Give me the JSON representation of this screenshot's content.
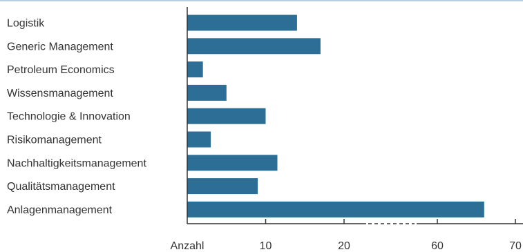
{
  "chart_data": {
    "type": "bar",
    "orientation": "horizontal",
    "categories": [
      "Logistik",
      "Generic Management",
      "Petroleum Economics",
      "Wissensmanagement",
      "Technologie & Innovation",
      "Risikomanagement",
      "Nachhaltigkeitsmanagement",
      "Qualitätsmanagement",
      "Anlagenmanagement"
    ],
    "values": [
      14,
      17,
      2,
      5,
      10,
      3,
      11.5,
      9,
      66
    ],
    "axis_break": {
      "from": 25,
      "to": 55
    },
    "xticks": [
      10,
      20,
      60,
      70
    ],
    "xlim": [
      0,
      70
    ],
    "xlabel": "Anzahl",
    "grid": false,
    "bar_color": "#2c6e96",
    "rule_color": "#b9cfe0",
    "axis_color": "#333333"
  }
}
